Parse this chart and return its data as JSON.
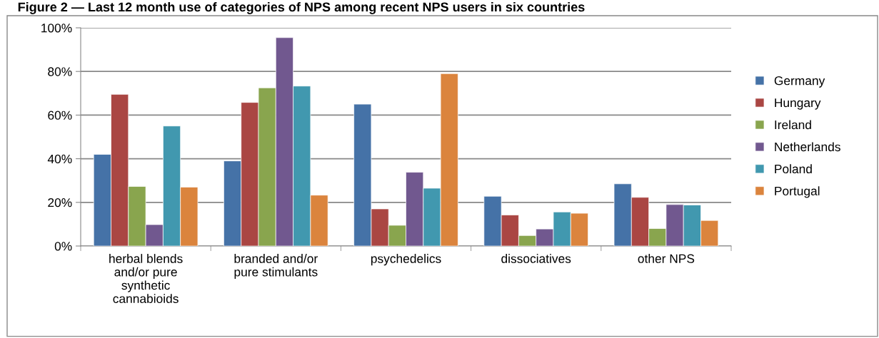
{
  "chart_data": {
    "type": "bar",
    "title": "Figure 2 — Last 12 month use of categories of NPS among recent NPS users in six countries",
    "categories": [
      "herbal blends\nand/or pure\nsynthetic\ncannabioids",
      "branded and/or\npure stimulants",
      "psychedelics",
      "dissociatives",
      "other NPS"
    ],
    "series": [
      {
        "name": "Germany",
        "color": "#4572a7",
        "values": [
          42,
          39,
          65,
          22.8,
          28.5
        ]
      },
      {
        "name": "Hungary",
        "color": "#aa4643",
        "values": [
          69.5,
          65.8,
          17,
          14.2,
          22.3
        ]
      },
      {
        "name": "Ireland",
        "color": "#89a54e",
        "values": [
          27.3,
          72.5,
          9.5,
          4.8,
          8
        ]
      },
      {
        "name": "Netherlands",
        "color": "#71588f",
        "values": [
          9.8,
          95.5,
          33.8,
          7.8,
          19
        ]
      },
      {
        "name": "Poland",
        "color": "#4198af",
        "values": [
          55,
          73.3,
          26.5,
          15.6,
          18.8
        ]
      },
      {
        "name": "Portugal",
        "color": "#db843d",
        "values": [
          27,
          23.3,
          79,
          15,
          11.7
        ]
      }
    ],
    "ylim": [
      0,
      100
    ],
    "yticks": [
      {
        "value": 0,
        "label": "0%"
      },
      {
        "value": 20,
        "label": "20%"
      },
      {
        "value": 40,
        "label": "40%"
      },
      {
        "value": 60,
        "label": "60%"
      },
      {
        "value": 80,
        "label": "80%"
      },
      {
        "value": 100,
        "label": "100%"
      }
    ],
    "grid": "y",
    "legend": "right"
  }
}
